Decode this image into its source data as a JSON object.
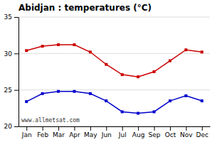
{
  "chart_data": {
    "type": "line",
    "title": "Abidjan : temperatures (°C)",
    "categories": [
      "Jan",
      "Feb",
      "Mar",
      "Apr",
      "May",
      "Jun",
      "Jul",
      "Aug",
      "Sep",
      "Oct",
      "Nov",
      "Dec"
    ],
    "series": [
      {
        "color": "#cc0000",
        "marker": "square",
        "values": [
          30.4,
          31.0,
          31.2,
          31.2,
          30.2,
          28.5,
          27.1,
          26.8,
          27.5,
          29.0,
          30.5,
          30.2
        ]
      },
      {
        "color": "#0000cc",
        "marker": "square",
        "values": [
          23.4,
          24.5,
          24.8,
          24.8,
          24.5,
          23.5,
          22.0,
          21.8,
          22.0,
          23.5,
          24.2,
          23.5
        ]
      }
    ],
    "ylim": [
      20,
      35
    ],
    "yticks": [
      20,
      25,
      30,
      35
    ],
    "grid": true,
    "annotations": [
      "www.allmetsat.com"
    ]
  }
}
